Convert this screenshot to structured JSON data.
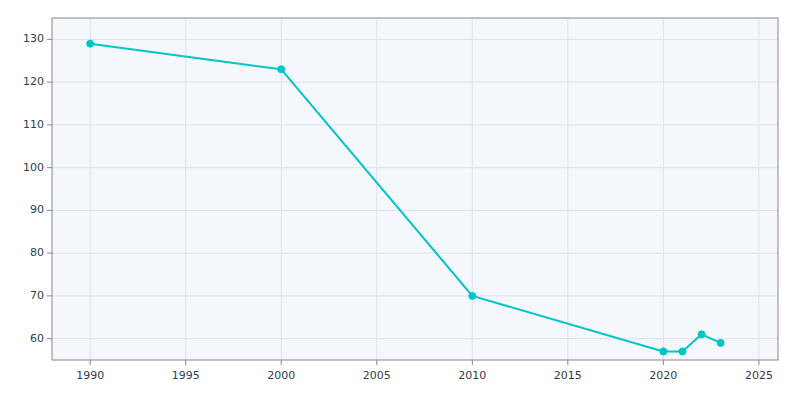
{
  "chart_data": {
    "type": "line",
    "x": [
      1990,
      2000,
      2010,
      2020,
      2021,
      2022,
      2023
    ],
    "values": [
      129,
      123,
      70,
      57,
      57,
      61,
      59
    ],
    "color": "#00C5C8",
    "marker": "circle",
    "xlim": [
      1988,
      2026
    ],
    "ylim": [
      55,
      135
    ],
    "xticks": [
      1990,
      1995,
      2000,
      2005,
      2010,
      2015,
      2020,
      2025
    ],
    "yticks": [
      60,
      70,
      80,
      90,
      100,
      110,
      120,
      130
    ],
    "grid": true
  }
}
